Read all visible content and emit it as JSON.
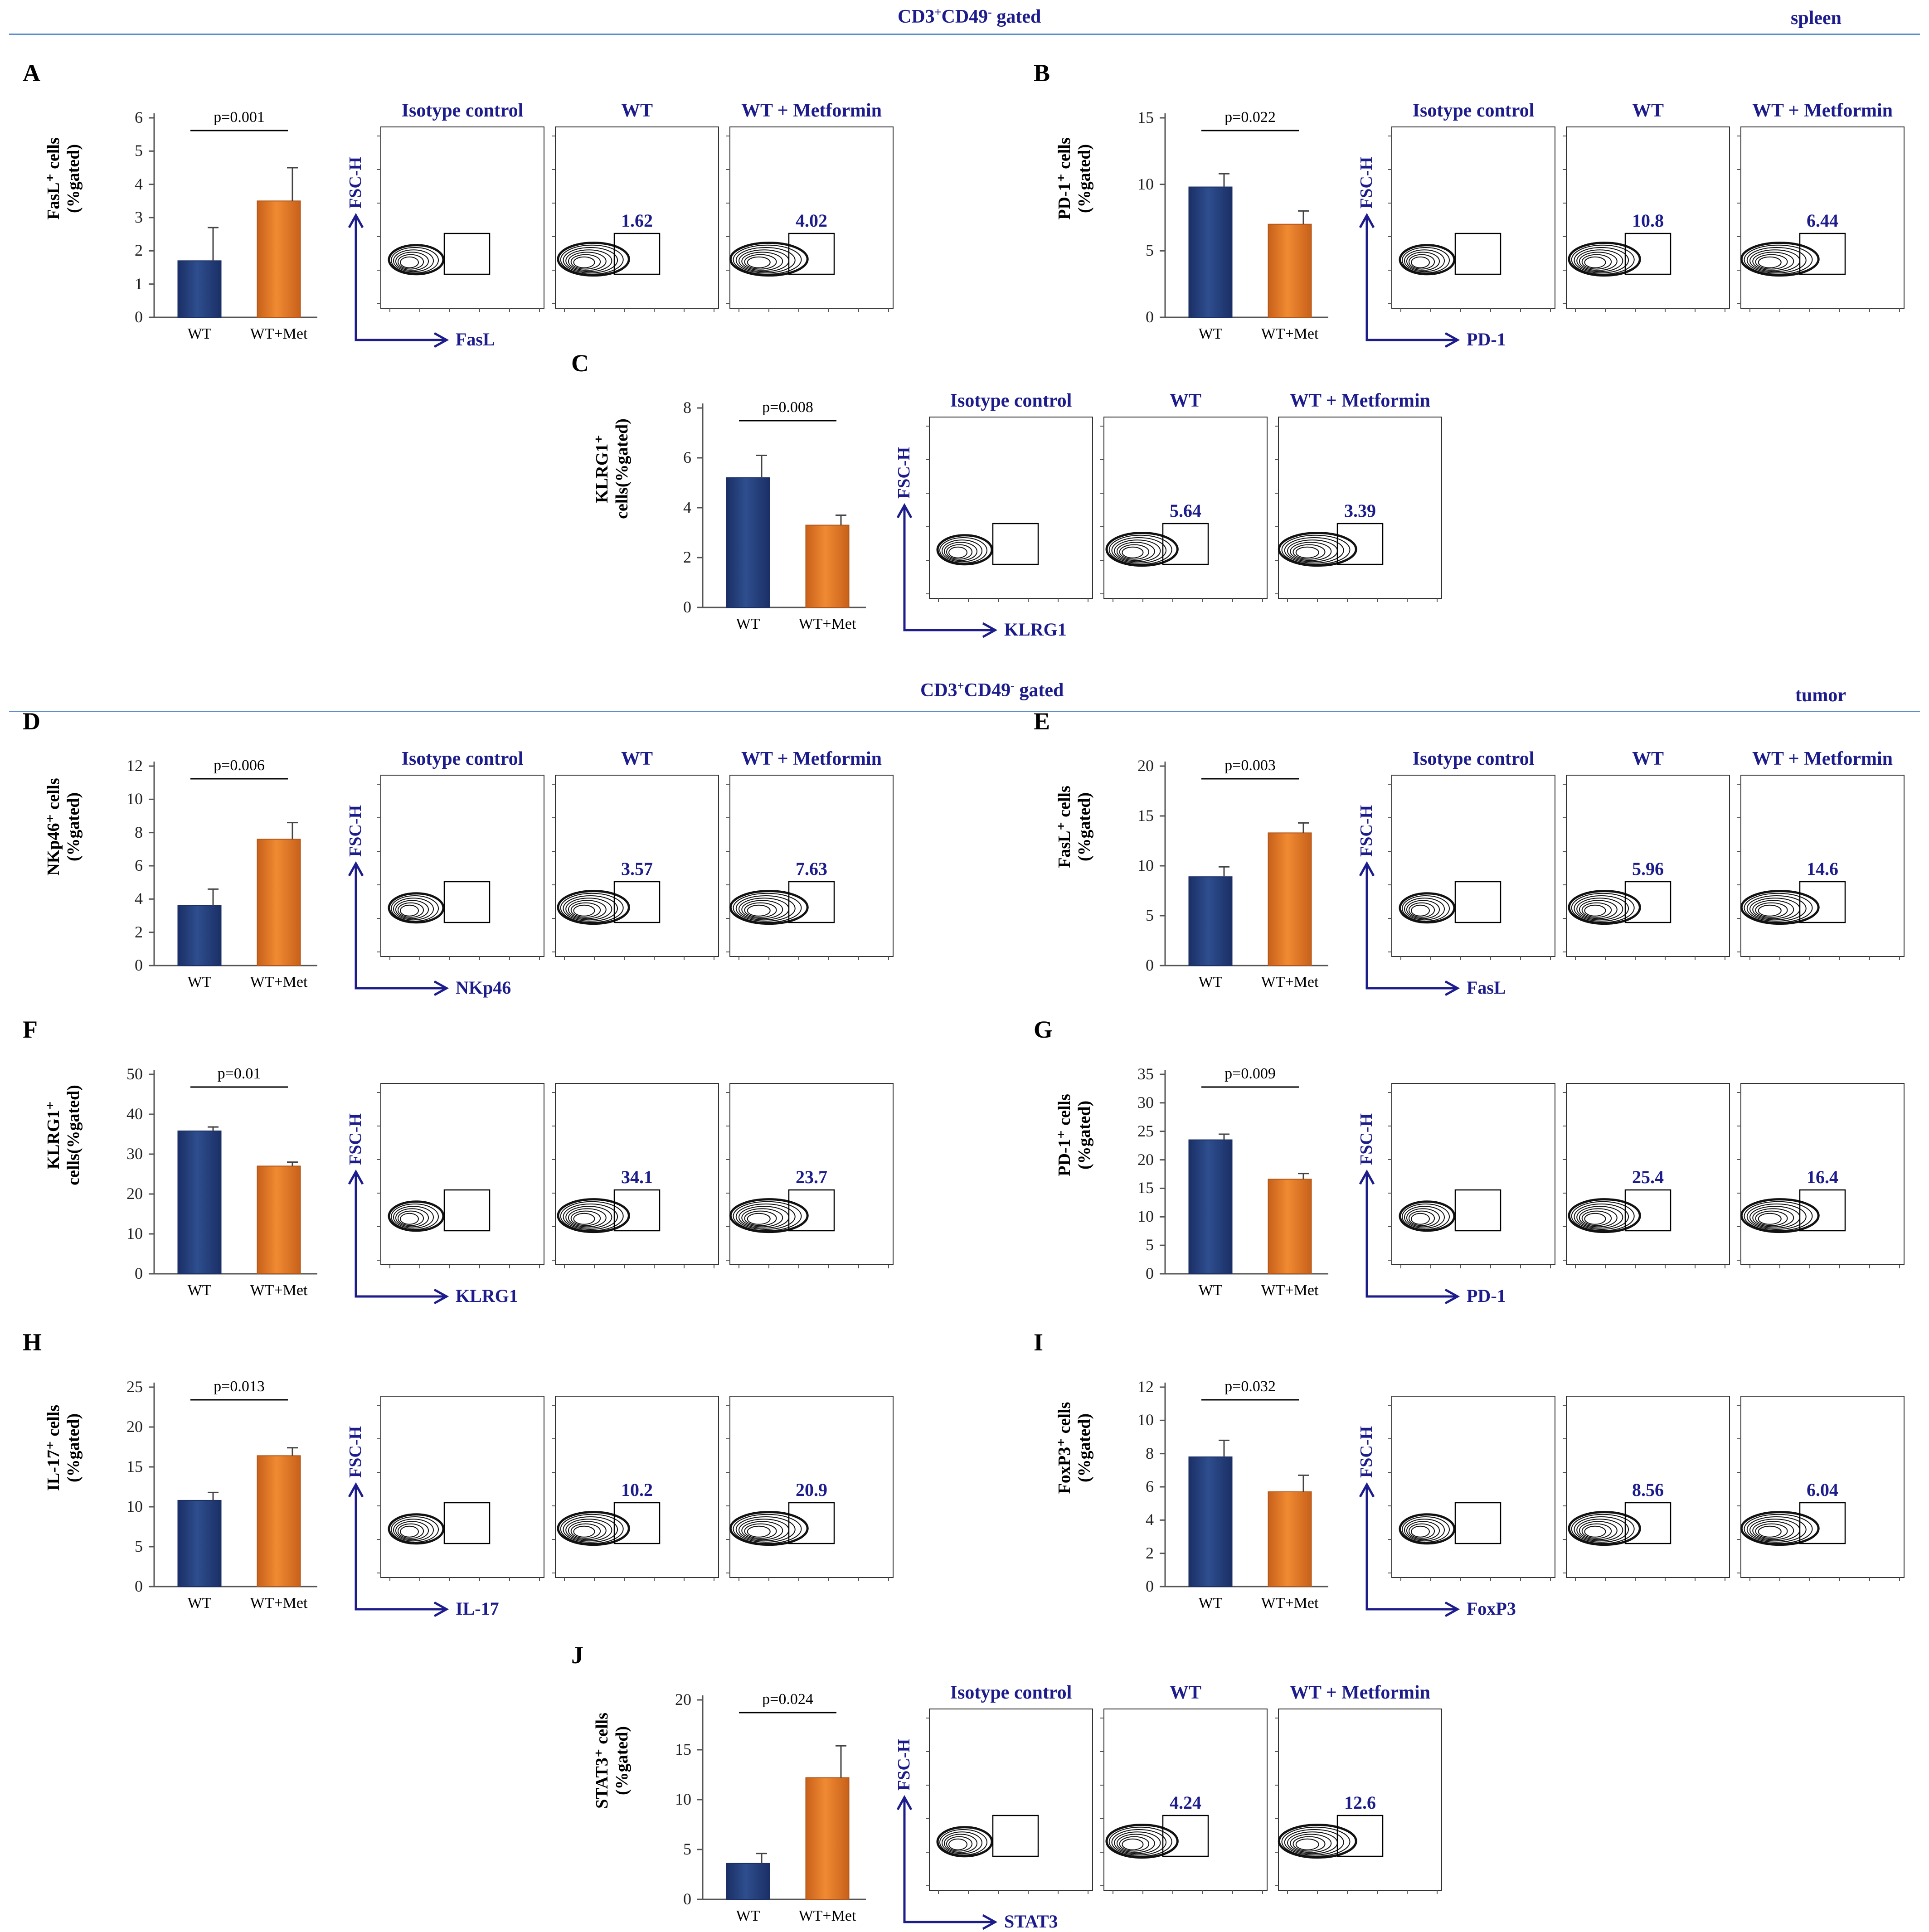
{
  "sections": [
    {
      "gate_label_main": "CD3",
      "gate_label_sup1": "+",
      "gate_label_mid": "CD49",
      "gate_label_sup2": "-",
      "gate_label_end": " gated",
      "tissue": "spleen"
    },
    {
      "gate_label_main": "CD3",
      "gate_label_sup1": "+",
      "gate_label_mid": "CD49",
      "gate_label_sup2": "-",
      "gate_label_end": " gated",
      "tissue": "tumor"
    }
  ],
  "colors": {
    "wt": "#2e4e8e",
    "met": "#f08a32",
    "title": "#1c1c8c",
    "divider": "#5b8fc9"
  },
  "flow_titles": {
    "iso": "Isotype control",
    "wt": "WT",
    "met": "WT + Metformin"
  },
  "fsc_label": "FSC-H",
  "chart_data": [
    {
      "id": "A",
      "type": "bar",
      "ylabel_line1": "FasL⁺ cells",
      "ylabel_line2": "(%gated)",
      "categories": [
        "WT",
        "WT+Met"
      ],
      "values": [
        1.7,
        3.5
      ],
      "errors": [
        1.0,
        1.0
      ],
      "ylim": [
        0,
        6
      ],
      "yticks": [
        "0",
        "1",
        "2",
        "3",
        "4",
        "5",
        "6"
      ],
      "pvalue": "p=0.001",
      "marker": "FasL",
      "gates": [
        "1.62",
        "4.02"
      ],
      "titles": true
    },
    {
      "id": "B",
      "type": "bar",
      "ylabel_line1": "PD-1⁺ cells",
      "ylabel_line2": "(%gated)",
      "categories": [
        "WT",
        "WT+Met"
      ],
      "values": [
        9.8,
        7.0
      ],
      "errors": [
        1.0,
        1.0
      ],
      "ylim": [
        0,
        15
      ],
      "yticks": [
        "0",
        "5",
        "10",
        "15"
      ],
      "pvalue": "p=0.022",
      "marker": "PD-1",
      "gates": [
        "10.8",
        "6.44"
      ],
      "titles": true
    },
    {
      "id": "C",
      "type": "bar",
      "ylabel_line1": "KLRG1⁺",
      "ylabel_line2": "cells(%gated)",
      "categories": [
        "WT",
        "WT+Met"
      ],
      "values": [
        5.2,
        3.3
      ],
      "errors": [
        0.9,
        0.4
      ],
      "ylim": [
        0,
        8
      ],
      "yticks": [
        "0",
        "2",
        "4",
        "6",
        "8"
      ],
      "pvalue": "p=0.008",
      "marker": "KLRG1",
      "gates": [
        "5.64",
        "3.39"
      ],
      "titles": true
    },
    {
      "id": "D",
      "type": "bar",
      "ylabel_line1": "NKp46⁺ cells",
      "ylabel_line2": "(%gated)",
      "categories": [
        "WT",
        "WT+Met"
      ],
      "values": [
        3.6,
        7.6
      ],
      "errors": [
        1.0,
        1.0
      ],
      "ylim": [
        0,
        12
      ],
      "yticks": [
        "0",
        "2",
        "4",
        "6",
        "8",
        "10",
        "12"
      ],
      "pvalue": "p=0.006",
      "marker": "NKp46",
      "gates": [
        "3.57",
        "7.63"
      ],
      "titles": true
    },
    {
      "id": "E",
      "type": "bar",
      "ylabel_line1": "FasL⁺ cells",
      "ylabel_line2": "(%gated)",
      "categories": [
        "WT",
        "WT+Met"
      ],
      "values": [
        8.9,
        13.3
      ],
      "errors": [
        1.0,
        1.0
      ],
      "ylim": [
        0,
        20
      ],
      "yticks": [
        "0",
        "5",
        "10",
        "15",
        "20"
      ],
      "pvalue": "p=0.003",
      "marker": "FasL",
      "gates": [
        "5.96",
        "14.6"
      ],
      "titles": true
    },
    {
      "id": "F",
      "type": "bar",
      "ylabel_line1": "KLRG1⁺",
      "ylabel_line2": "cells(%gated)",
      "categories": [
        "WT",
        "WT+Met"
      ],
      "values": [
        35.8,
        27.0
      ],
      "errors": [
        1.0,
        1.0
      ],
      "ylim": [
        0,
        50
      ],
      "yticks": [
        "0",
        "10",
        "20",
        "30",
        "40",
        "50"
      ],
      "pvalue": "p=0.01",
      "marker": "KLRG1",
      "gates": [
        "34.1",
        "23.7"
      ],
      "titles": false
    },
    {
      "id": "G",
      "type": "bar",
      "ylabel_line1": "PD-1⁺ cells",
      "ylabel_line2": "(%gated)",
      "categories": [
        "WT",
        "WT+Met"
      ],
      "values": [
        23.5,
        16.6
      ],
      "errors": [
        1.0,
        1.0
      ],
      "ylim": [
        0,
        35
      ],
      "yticks": [
        "0",
        "5",
        "10",
        "15",
        "20",
        "25",
        "30",
        "35"
      ],
      "pvalue": "p=0.009",
      "marker": "PD-1",
      "gates": [
        "25.4",
        "16.4"
      ],
      "titles": false
    },
    {
      "id": "H",
      "type": "bar",
      "ylabel_line1": "IL-17⁺ cells",
      "ylabel_line2": "(%gated)",
      "categories": [
        "WT",
        "WT+Met"
      ],
      "values": [
        10.8,
        16.4
      ],
      "errors": [
        1.0,
        1.0
      ],
      "ylim": [
        0,
        25
      ],
      "yticks": [
        "0",
        "5",
        "10",
        "15",
        "20",
        "25"
      ],
      "pvalue": "p=0.013",
      "marker": "IL-17",
      "gates": [
        "10.2",
        "20.9"
      ],
      "titles": false
    },
    {
      "id": "I",
      "type": "bar",
      "ylabel_line1": "FoxP3⁺ cells",
      "ylabel_line2": "(%gated)",
      "categories": [
        "WT",
        "WT+Met"
      ],
      "values": [
        7.8,
        5.7
      ],
      "errors": [
        1.0,
        1.0
      ],
      "ylim": [
        0,
        12
      ],
      "yticks": [
        "0",
        "2",
        "4",
        "6",
        "8",
        "10",
        "12"
      ],
      "pvalue": "p=0.032",
      "marker": "FoxP3",
      "gates": [
        "8.56",
        "6.04"
      ],
      "titles": false
    },
    {
      "id": "J",
      "type": "bar",
      "ylabel_line1": "STAT3⁺ cells",
      "ylabel_line2": "(%gated)",
      "categories": [
        "WT",
        "WT+Met"
      ],
      "values": [
        3.6,
        12.2
      ],
      "errors": [
        1.0,
        3.2
      ],
      "ylim": [
        0,
        20
      ],
      "yticks": [
        "0",
        "5",
        "10",
        "15",
        "20"
      ],
      "pvalue": "p=0.024",
      "marker": "STAT3",
      "gates": [
        "4.24",
        "12.6"
      ],
      "titles": true
    }
  ]
}
